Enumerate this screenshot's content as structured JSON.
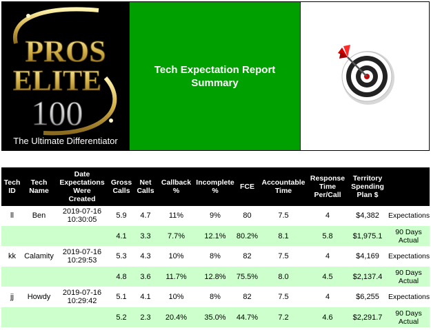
{
  "header": {
    "logo": {
      "line1": "PROS",
      "line2": "ELITE",
      "line3": "100",
      "tagline": "The Ultimate Differentiator"
    },
    "title_line1": "Tech Expectation Report",
    "title_line2": "Summary",
    "target_icon": "bullseye-dart-icon",
    "colors": {
      "title_bg": "#00a000",
      "actual_row_bg": "#ccffcc",
      "header_bg": "#000000",
      "logo_gold": "#d4b24a"
    }
  },
  "table": {
    "columns": [
      {
        "l1": "Tech",
        "l2": "ID"
      },
      {
        "l1": "Tech",
        "l2": "Name"
      },
      {
        "l1": "Date",
        "l2": "Expectations",
        "l3": "Were",
        "l4": "Created"
      },
      {
        "l1": "Gross",
        "l2": "Calls"
      },
      {
        "l1": "Net",
        "l2": "Calls"
      },
      {
        "l1": "Callback",
        "l2": "%"
      },
      {
        "l1": "Incomplete",
        "l2": "%"
      },
      {
        "l1": "FCE"
      },
      {
        "l1": "Accountable",
        "l2": "Time"
      },
      {
        "l1": "Response",
        "l2": "Time",
        "l3": "Per/Call"
      },
      {
        "l1": "Territory",
        "l2": "Spending",
        "l3": "Plan $"
      },
      {
        "l1": ""
      }
    ],
    "techs": [
      {
        "id": "ll",
        "name": "Ben",
        "date": "2019-07-16",
        "time": "10:30:05",
        "expect": {
          "gross": "5.9",
          "net": "4.7",
          "callback": "11%",
          "incomplete": "9%",
          "fce": "80",
          "acct": "7.5",
          "resp": "4",
          "spend": "$4,382",
          "label": "Expectations"
        },
        "actual": {
          "gross": "4.1",
          "net": "3.3",
          "callback": "7.7%",
          "incomplete": "12.1%",
          "fce": "80.2%",
          "acct": "8.1",
          "resp": "5.8",
          "spend": "$1,975.1",
          "label1": "90 Days",
          "label2": "Actual"
        }
      },
      {
        "id": "kk",
        "name": "Calamity",
        "date": "2019-07-16",
        "time": "10:29:53",
        "expect": {
          "gross": "5.3",
          "net": "4.3",
          "callback": "10%",
          "incomplete": "8%",
          "fce": "82",
          "acct": "7.5",
          "resp": "4",
          "spend": "$4,169",
          "label": "Expectations"
        },
        "actual": {
          "gross": "4.8",
          "net": "3.6",
          "callback": "11.7%",
          "incomplete": "12.8%",
          "fce": "75.5%",
          "acct": "8.0",
          "resp": "4.5",
          "spend": "$2,137.4",
          "label1": "90 Days",
          "label2": "Actual"
        }
      },
      {
        "id": "jj",
        "name": "Howdy",
        "date": "2019-07-16",
        "time": "10:29:42",
        "expect": {
          "gross": "5.1",
          "net": "4.1",
          "callback": "10%",
          "incomplete": "8%",
          "fce": "82",
          "acct": "7.5",
          "resp": "4",
          "spend": "$6,255",
          "label": "Expectations"
        },
        "actual": {
          "gross": "5.2",
          "net": "2.3",
          "callback": "20.4%",
          "incomplete": "35.0%",
          "fce": "44.7%",
          "acct": "7.2",
          "resp": "4.6",
          "spend": "$2,291.7",
          "label1": "90 Days",
          "label2": "Actual"
        }
      }
    ]
  }
}
